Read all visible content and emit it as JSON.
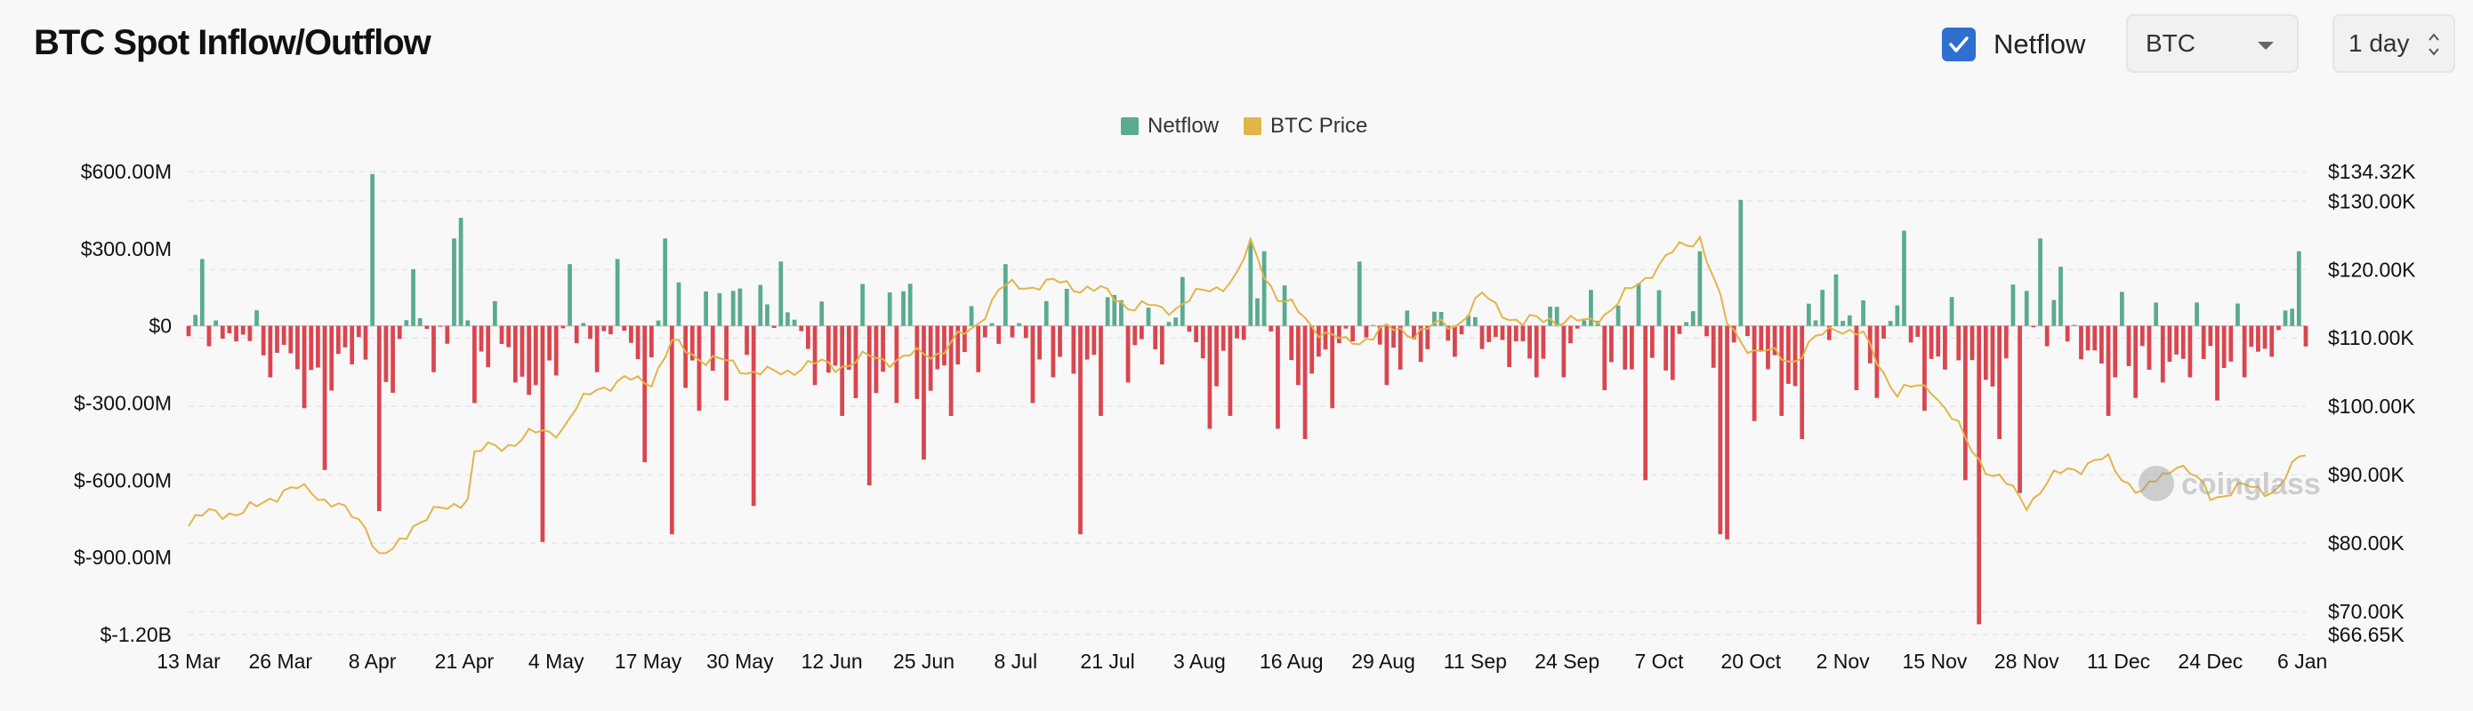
{
  "header": {
    "title": "BTC Spot Inflow/Outflow",
    "netflow_label": "Netflow",
    "asset_select": "BTC",
    "interval_select": "1 day"
  },
  "colors": {
    "positive": "#5aab8f",
    "negative": "#d9464f",
    "price": "#e2b548",
    "accent": "#2e6fd0"
  },
  "watermark": "coinglass",
  "chart_data": {
    "type": "bar",
    "legend": [
      "Netflow",
      "BTC Price"
    ],
    "legend_position": "top-center",
    "grid": true,
    "left_axis": {
      "ticks": [
        600,
        300,
        0,
        -300,
        -600,
        -900,
        -1200
      ],
      "tick_labels": [
        "$600.00M",
        "$300.00M",
        "$0",
        "$-300.00M",
        "$-600.00M",
        "$-900.00M",
        "$-1.20B"
      ],
      "ylim": [
        -1200,
        600
      ],
      "unit": "M USD"
    },
    "right_axis": {
      "ticks": [
        134.32,
        130,
        120,
        110,
        100,
        90,
        80,
        70,
        66.65
      ],
      "tick_labels": [
        "$134.32K",
        "$130.00K",
        "$120.00K",
        "$110.00K",
        "$100.00K",
        "$90.00K",
        "$80.00K",
        "$70.00K",
        "$66.65K"
      ],
      "ylim": [
        66.65,
        134.32
      ],
      "unit": "K USD"
    },
    "x_labels": [
      "13 Mar",
      "26 Mar",
      "8 Apr",
      "21 Apr",
      "4 May",
      "17 May",
      "30 May",
      "12 Jun",
      "25 Jun",
      "8 Jul",
      "21 Jul",
      "3 Aug",
      "16 Aug",
      "29 Aug",
      "11 Sep",
      "24 Sep",
      "7 Oct",
      "20 Oct",
      "2 Nov",
      "15 Nov",
      "28 Nov",
      "11 Dec",
      "24 Dec",
      "6 Jan"
    ],
    "netflow_keys": [
      {
        "day": 0,
        "value": -40
      },
      {
        "day": 2,
        "value": 260
      },
      {
        "day": 5,
        "value": -50
      },
      {
        "day": 12,
        "value": -200
      },
      {
        "day": 17,
        "value": -320
      },
      {
        "day": 20,
        "value": -560
      },
      {
        "day": 24,
        "value": -150
      },
      {
        "day": 27,
        "value": 590
      },
      {
        "day": 28,
        "value": -720
      },
      {
        "day": 30,
        "value": -260
      },
      {
        "day": 33,
        "value": 220
      },
      {
        "day": 36,
        "value": -180
      },
      {
        "day": 39,
        "value": 340
      },
      {
        "day": 40,
        "value": 420
      },
      {
        "day": 42,
        "value": -300
      },
      {
        "day": 48,
        "value": -220
      },
      {
        "day": 52,
        "value": -840
      },
      {
        "day": 56,
        "value": 240
      },
      {
        "day": 60,
        "value": -180
      },
      {
        "day": 63,
        "value": 260
      },
      {
        "day": 67,
        "value": -530
      },
      {
        "day": 70,
        "value": 340
      },
      {
        "day": 71,
        "value": -810
      },
      {
        "day": 75,
        "value": -330
      },
      {
        "day": 79,
        "value": -290
      },
      {
        "day": 83,
        "value": -700
      },
      {
        "day": 87,
        "value": 250
      },
      {
        "day": 92,
        "value": -230
      },
      {
        "day": 96,
        "value": -350
      },
      {
        "day": 100,
        "value": -620
      },
      {
        "day": 104,
        "value": -300
      },
      {
        "day": 108,
        "value": -520
      },
      {
        "day": 112,
        "value": -350
      },
      {
        "day": 116,
        "value": -180
      },
      {
        "day": 120,
        "value": 240
      },
      {
        "day": 124,
        "value": -300
      },
      {
        "day": 127,
        "value": -200
      },
      {
        "day": 131,
        "value": -810
      },
      {
        "day": 134,
        "value": -350
      },
      {
        "day": 138,
        "value": -220
      },
      {
        "day": 143,
        "value": -150
      },
      {
        "day": 146,
        "value": 190
      },
      {
        "day": 150,
        "value": -400
      },
      {
        "day": 153,
        "value": -350
      },
      {
        "day": 156,
        "value": 330
      },
      {
        "day": 158,
        "value": 290
      },
      {
        "day": 160,
        "value": -400
      },
      {
        "day": 164,
        "value": -440
      },
      {
        "day": 168,
        "value": -320
      },
      {
        "day": 172,
        "value": 250
      },
      {
        "day": 176,
        "value": -230
      },
      {
        "day": 178,
        "value": -170
      },
      {
        "day": 181,
        "value": -140
      },
      {
        "day": 186,
        "value": -120
      },
      {
        "day": 190,
        "value": -90
      },
      {
        "day": 194,
        "value": -160
      },
      {
        "day": 198,
        "value": -200
      },
      {
        "day": 202,
        "value": -200
      },
      {
        "day": 206,
        "value": 140
      },
      {
        "day": 208,
        "value": -250
      },
      {
        "day": 211,
        "value": -170
      },
      {
        "day": 214,
        "value": -600
      },
      {
        "day": 218,
        "value": -210
      },
      {
        "day": 222,
        "value": 290
      },
      {
        "day": 225,
        "value": -810
      },
      {
        "day": 226,
        "value": -830
      },
      {
        "day": 228,
        "value": 490
      },
      {
        "day": 230,
        "value": -370
      },
      {
        "day": 234,
        "value": -350
      },
      {
        "day": 237,
        "value": -440
      },
      {
        "day": 240,
        "value": 140
      },
      {
        "day": 242,
        "value": 200
      },
      {
        "day": 245,
        "value": -250
      },
      {
        "day": 248,
        "value": -280
      },
      {
        "day": 252,
        "value": 370
      },
      {
        "day": 255,
        "value": -330
      },
      {
        "day": 258,
        "value": -170
      },
      {
        "day": 261,
        "value": -600
      },
      {
        "day": 263,
        "value": -1160
      },
      {
        "day": 266,
        "value": -440
      },
      {
        "day": 269,
        "value": -650
      },
      {
        "day": 272,
        "value": 340
      },
      {
        "day": 275,
        "value": 230
      },
      {
        "day": 278,
        "value": -130
      },
      {
        "day": 282,
        "value": -350
      },
      {
        "day": 286,
        "value": -280
      },
      {
        "day": 290,
        "value": -220
      },
      {
        "day": 294,
        "value": -200
      },
      {
        "day": 298,
        "value": -290
      },
      {
        "day": 302,
        "value": -200
      },
      {
        "day": 306,
        "value": -120
      },
      {
        "day": 308,
        "value": 60
      },
      {
        "day": 310,
        "value": 290
      },
      {
        "day": 311,
        "value": -80
      }
    ],
    "price_keys": [
      {
        "day": 0,
        "value": 82.5
      },
      {
        "day": 4,
        "value": 85
      },
      {
        "day": 8,
        "value": 84
      },
      {
        "day": 12,
        "value": 87
      },
      {
        "day": 18,
        "value": 88
      },
      {
        "day": 22,
        "value": 85
      },
      {
        "day": 26,
        "value": 83
      },
      {
        "day": 28,
        "value": 78
      },
      {
        "day": 30,
        "value": 78.5
      },
      {
        "day": 33,
        "value": 83
      },
      {
        "day": 38,
        "value": 85
      },
      {
        "day": 41,
        "value": 87
      },
      {
        "day": 42,
        "value": 93
      },
      {
        "day": 48,
        "value": 95
      },
      {
        "day": 55,
        "value": 97
      },
      {
        "day": 60,
        "value": 103
      },
      {
        "day": 68,
        "value": 104
      },
      {
        "day": 71,
        "value": 109
      },
      {
        "day": 76,
        "value": 107
      },
      {
        "day": 80,
        "value": 106
      },
      {
        "day": 86,
        "value": 104.5
      },
      {
        "day": 90,
        "value": 106
      },
      {
        "day": 95,
        "value": 106
      },
      {
        "day": 100,
        "value": 107
      },
      {
        "day": 105,
        "value": 107
      },
      {
        "day": 110,
        "value": 108
      },
      {
        "day": 115,
        "value": 111
      },
      {
        "day": 119,
        "value": 117
      },
      {
        "day": 125,
        "value": 118
      },
      {
        "day": 132,
        "value": 117.5
      },
      {
        "day": 138,
        "value": 115
      },
      {
        "day": 143,
        "value": 114
      },
      {
        "day": 148,
        "value": 116
      },
      {
        "day": 154,
        "value": 119
      },
      {
        "day": 156,
        "value": 123.5
      },
      {
        "day": 160,
        "value": 116
      },
      {
        "day": 165,
        "value": 112
      },
      {
        "day": 170,
        "value": 109
      },
      {
        "day": 175,
        "value": 111
      },
      {
        "day": 180,
        "value": 111
      },
      {
        "day": 186,
        "value": 112
      },
      {
        "day": 190,
        "value": 116
      },
      {
        "day": 196,
        "value": 112
      },
      {
        "day": 200,
        "value": 113
      },
      {
        "day": 205,
        "value": 112
      },
      {
        "day": 210,
        "value": 115
      },
      {
        "day": 215,
        "value": 120
      },
      {
        "day": 219,
        "value": 123
      },
      {
        "day": 222,
        "value": 125
      },
      {
        "day": 226,
        "value": 112
      },
      {
        "day": 230,
        "value": 108
      },
      {
        "day": 236,
        "value": 107
      },
      {
        "day": 242,
        "value": 112
      },
      {
        "day": 246,
        "value": 110
      },
      {
        "day": 251,
        "value": 102
      },
      {
        "day": 256,
        "value": 103
      },
      {
        "day": 261,
        "value": 95
      },
      {
        "day": 265,
        "value": 90
      },
      {
        "day": 270,
        "value": 86
      },
      {
        "day": 276,
        "value": 91
      },
      {
        "day": 282,
        "value": 92
      },
      {
        "day": 287,
        "value": 87
      },
      {
        "day": 292,
        "value": 92
      },
      {
        "day": 297,
        "value": 87
      },
      {
        "day": 302,
        "value": 88
      },
      {
        "day": 307,
        "value": 88
      },
      {
        "day": 311,
        "value": 93.5
      }
    ]
  }
}
